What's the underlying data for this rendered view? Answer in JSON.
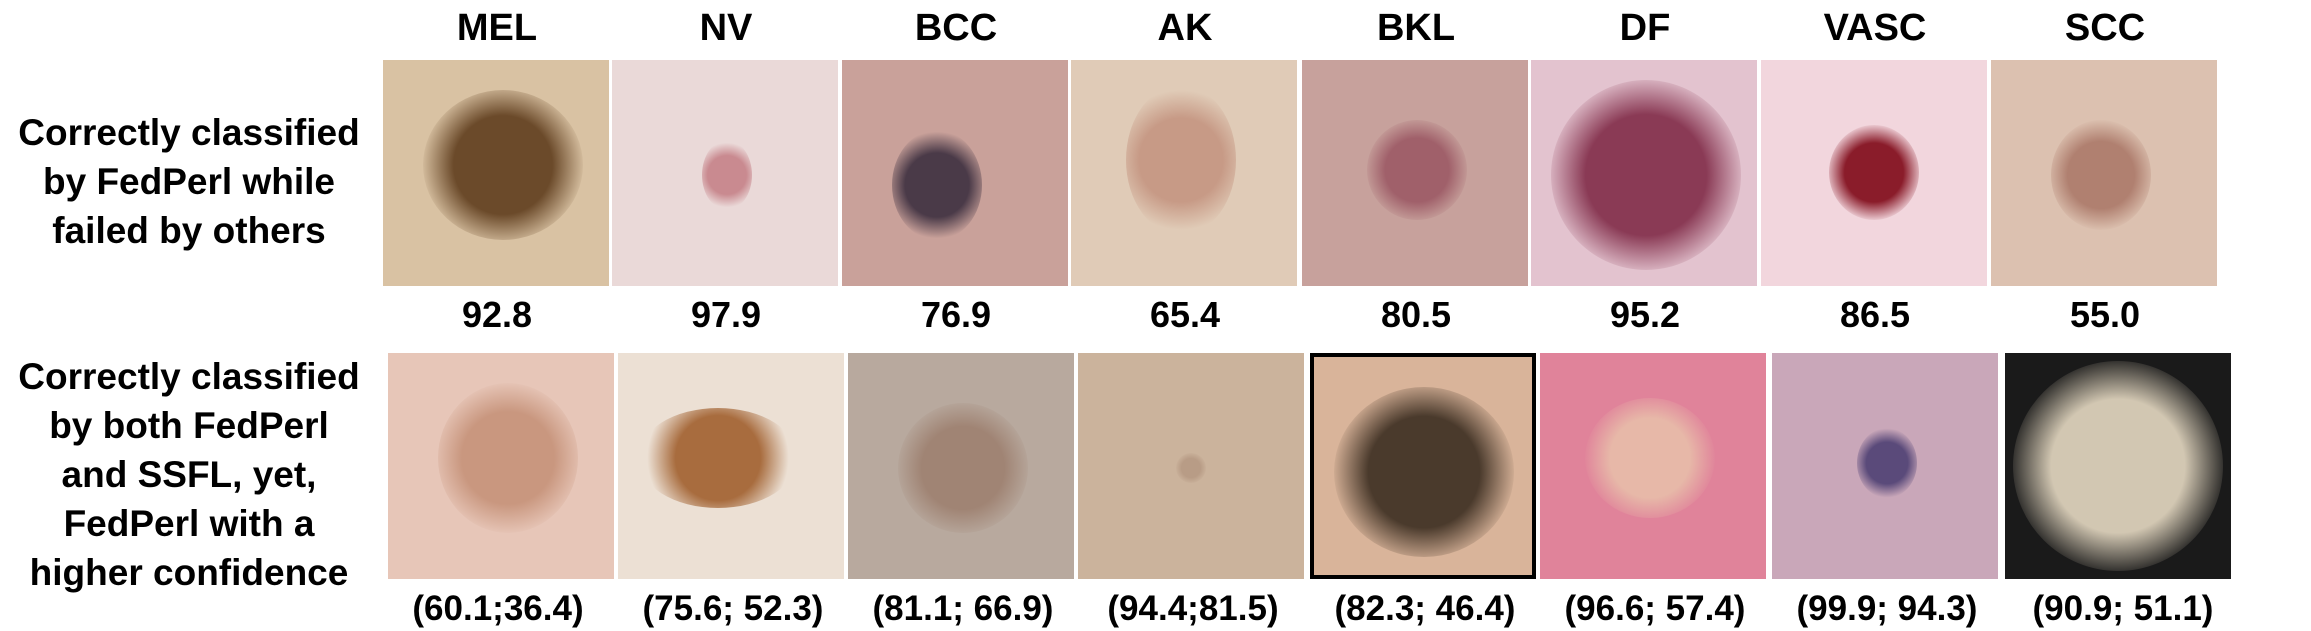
{
  "columns": [
    "MEL",
    "NV",
    "BCC",
    "AK",
    "BKL",
    "DF",
    "VASC",
    "SCC"
  ],
  "rows": [
    {
      "label_lines": [
        "Correctly classified",
        "by FedPerl while",
        "failed by others"
      ],
      "scores": [
        "92.8",
        "97.9",
        "76.9",
        "65.4",
        "80.5",
        "95.2",
        "86.5",
        "55.0"
      ],
      "tiles": [
        {
          "bg": "#d9c2a3",
          "lesion": "#6b4a2a"
        },
        {
          "bg": "#ead9d8",
          "lesion": "#c98a90"
        },
        {
          "bg": "#c9a19a",
          "lesion": "#4a3a48"
        },
        {
          "bg": "#e0cbb7",
          "lesion": "#c79a86"
        },
        {
          "bg": "#c7a19c",
          "lesion": "#a0606a"
        },
        {
          "bg": "#e3c3cf",
          "lesion": "#8a3a55"
        },
        {
          "bg": "#f2d6dd",
          "lesion": "#8a1c2a"
        },
        {
          "bg": "#dcc1b0",
          "lesion": "#b08070"
        }
      ]
    },
    {
      "label_lines": [
        "Correctly classified",
        "by both FedPerl",
        "and SSFL, yet,",
        "FedPerl with a",
        "higher confidence"
      ],
      "scores": [
        "(60.1;36.4)",
        "(75.6; 52.3)",
        "(81.1; 66.9)",
        "(94.4;81.5)",
        "(82.3; 46.4)",
        "(96.6; 57.4)",
        "(99.9; 94.3)",
        "(90.9; 51.1)"
      ],
      "tiles": [
        {
          "bg": "#e7c6b8",
          "lesion": "#c9977f"
        },
        {
          "bg": "#ece0d4",
          "lesion": "#a86c3e"
        },
        {
          "bg": "#b8a99e",
          "lesion": "#a08474"
        },
        {
          "bg": "#cbb39c",
          "lesion": "#b89c86"
        },
        {
          "bg": "#d9b49a",
          "lesion": "#4a3a2c"
        },
        {
          "bg": "#e0839a",
          "lesion": "#e7b8a8"
        },
        {
          "bg": "#c9a7b9",
          "lesion": "#5a4a7a"
        },
        {
          "bg": "#1a1a1a",
          "lesion": "#d2c7b2"
        }
      ]
    }
  ]
}
